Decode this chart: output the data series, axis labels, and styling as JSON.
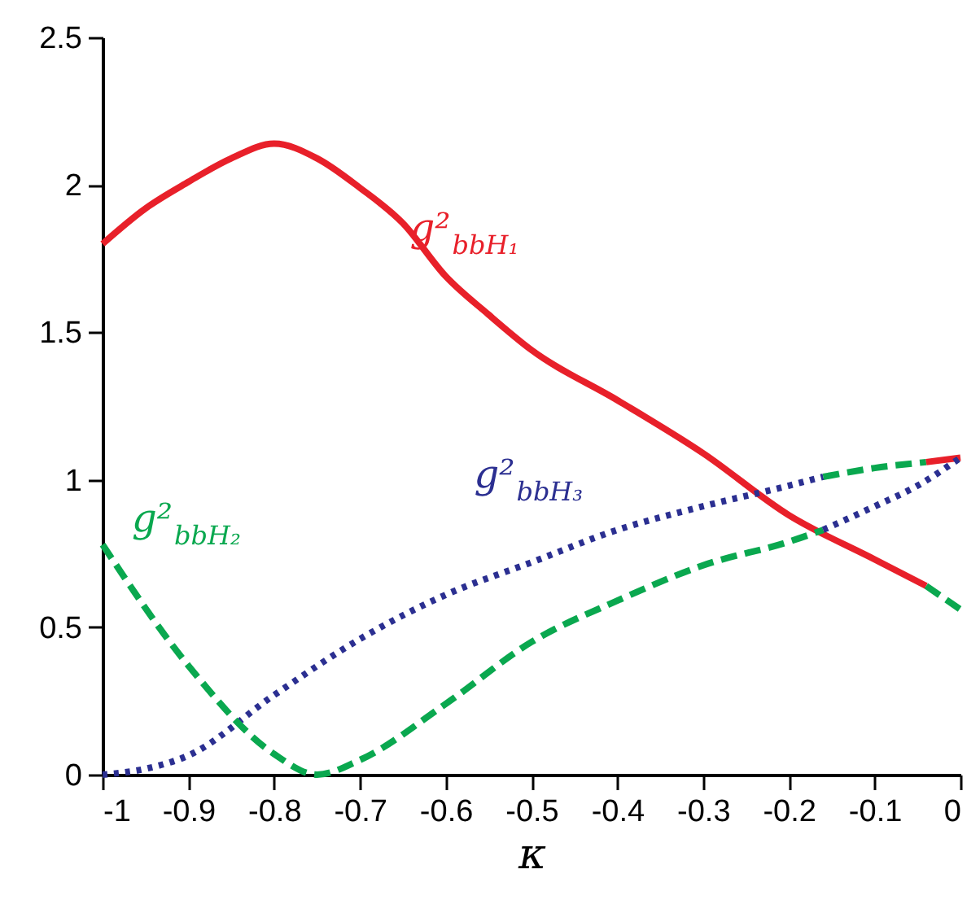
{
  "chart_data": {
    "type": "line",
    "xlabel": "κ",
    "xlim": [
      -1,
      0
    ],
    "ylim": [
      0,
      2.5
    ],
    "xticks": [
      -1,
      -0.9,
      -0.8,
      -0.7,
      -0.6,
      -0.5,
      -0.4,
      -0.3,
      -0.2,
      -0.1,
      0
    ],
    "yticks": [
      0,
      0.5,
      1,
      1.5,
      2,
      2.5
    ],
    "grid": false,
    "legend": false,
    "marker": "none",
    "series": [
      {
        "name": "g²$_{bbH₁}$",
        "color": "#e8202a",
        "line_style": "solid",
        "x": [
          -1,
          -0.95,
          -0.9,
          -0.85,
          -0.8,
          -0.75,
          -0.7,
          -0.65,
          -0.6,
          -0.55,
          -0.5,
          -0.4,
          -0.3,
          -0.2,
          -0.1,
          -0.04
        ],
        "values": [
          1.8,
          1.92,
          2.01,
          2.09,
          2.14,
          2.09,
          1.99,
          1.87,
          1.69,
          1.56,
          1.44,
          1.27,
          1.09,
          0.88,
          0.73,
          0.64
        ]
      },
      {
        "name": "g²$_{bbH₃}$",
        "color": "#2b2f91",
        "line_style": "dotted",
        "x": [
          -1,
          -0.95,
          -0.9,
          -0.8,
          -0.7,
          -0.6,
          -0.5,
          -0.4,
          -0.3,
          -0.2,
          -0.16
        ],
        "values": [
          0,
          0.02,
          0.065,
          0.27,
          0.46,
          0.61,
          0.72,
          0.83,
          0.91,
          0.98,
          1.01
        ]
      },
      {
        "name": "g²$_{bbH₂}$",
        "color": "#0aa84f",
        "line_style": "dashed",
        "x": [
          -1,
          -0.9,
          -0.8,
          -0.75,
          -0.7,
          -0.6,
          -0.5,
          -0.4,
          -0.3,
          -0.2,
          -0.16
        ],
        "values": [
          0.78,
          0.37,
          0.07,
          0,
          0.05,
          0.24,
          0.45,
          0.59,
          0.71,
          0.79,
          0.83
        ]
      },
      {
        "color": "#0aa84f",
        "line_style": "dashed",
        "x": [
          -0.16,
          -0.1,
          -0.04
        ],
        "values": [
          1.01,
          1.04,
          1.06
        ]
      },
      {
        "color": "#e8202a",
        "line_style": "solid",
        "x": [
          -0.04,
          0
        ],
        "values": [
          1.06,
          1.075
        ]
      },
      {
        "color": "#0aa84f",
        "line_style": "dashed",
        "x": [
          -0.04,
          0
        ],
        "values": [
          0.64,
          0.56
        ]
      },
      {
        "color": "#2b2f91",
        "line_style": "dotted",
        "x": [
          -0.16,
          -0.1,
          -0.05,
          0
        ],
        "values": [
          0.83,
          0.91,
          0.98,
          1.075
        ]
      }
    ]
  }
}
